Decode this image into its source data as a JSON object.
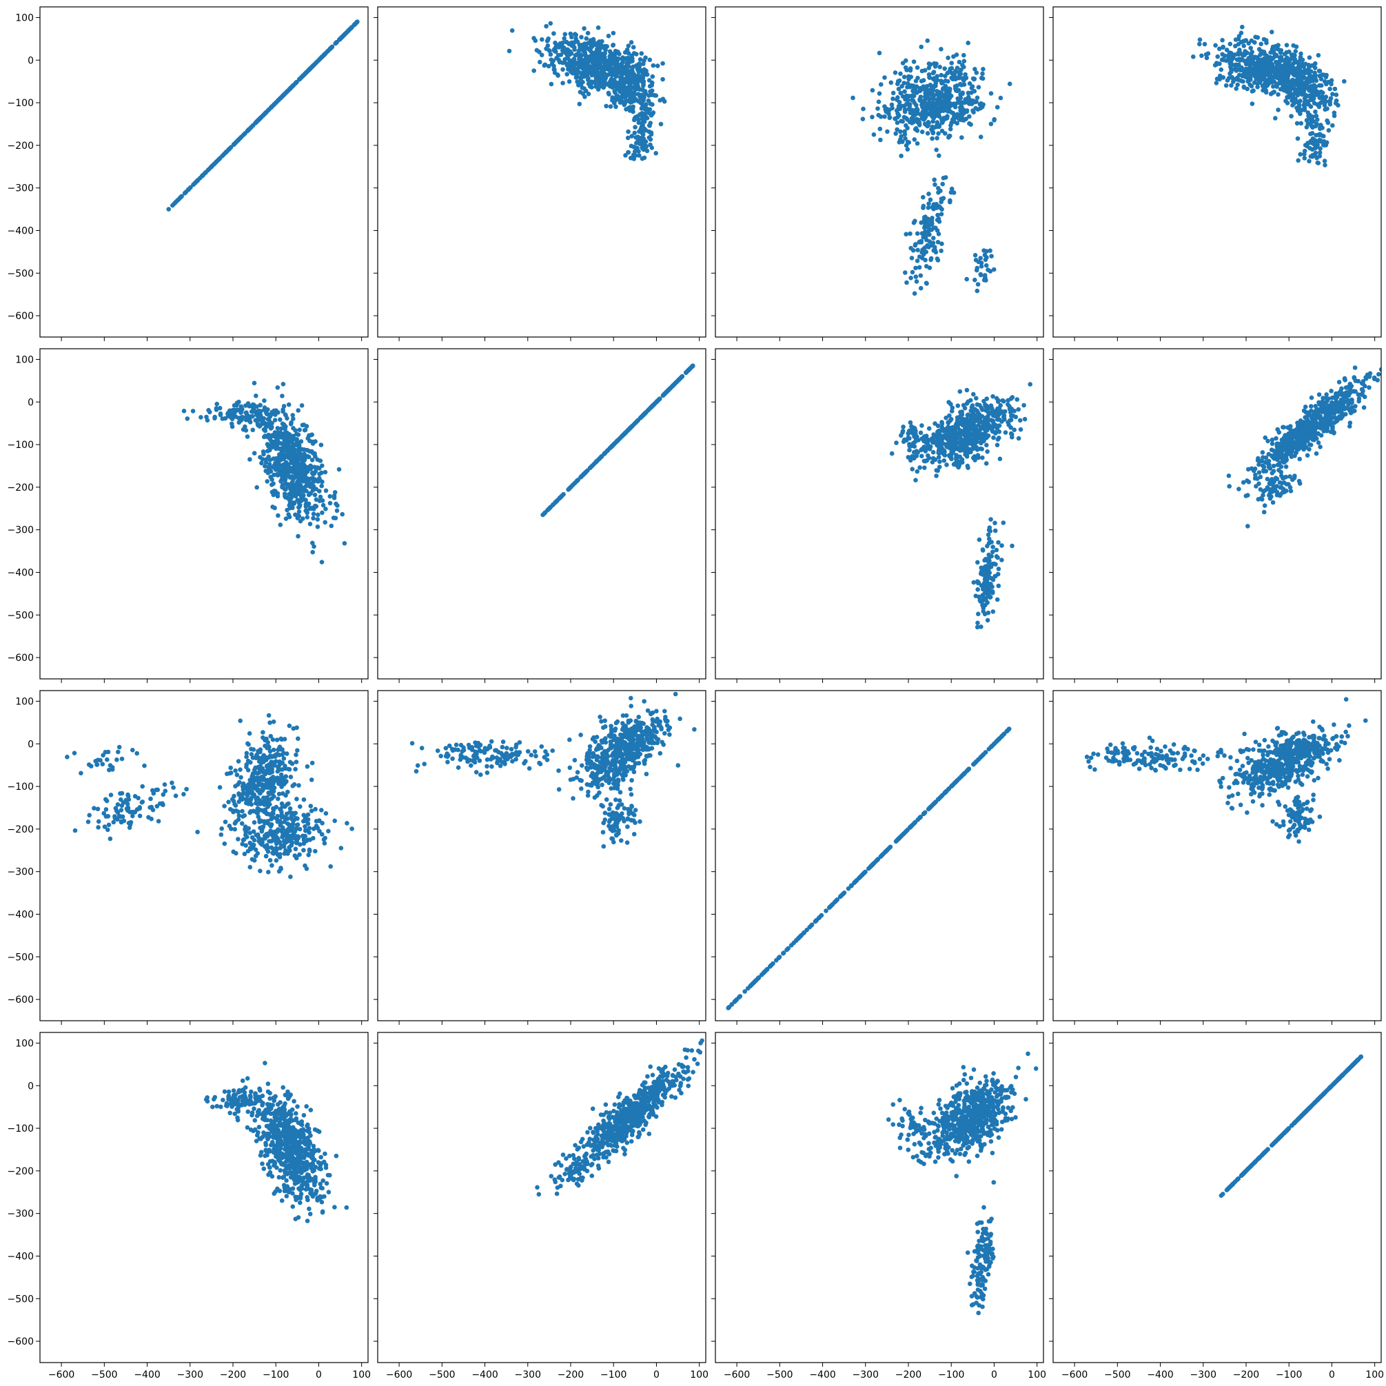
{
  "figure": {
    "rows": 4,
    "cols": 4,
    "marker_color": "#1f77b4",
    "sharex": true,
    "sharey": true,
    "grid": false,
    "legend": "none"
  },
  "chart_data": {
    "type": "scatter",
    "xlim": [
      -650,
      115
    ],
    "ylim": [
      -650,
      125
    ],
    "x_ticks": [
      -600,
      -500,
      -400,
      -300,
      -200,
      -100,
      0,
      100
    ],
    "y_ticks": [
      -600,
      -500,
      -400,
      -300,
      -200,
      -100,
      0,
      100
    ],
    "x_tick_labels": [
      "−600",
      "−500",
      "−400",
      "−300",
      "−200",
      "−100",
      "0",
      "100"
    ],
    "y_tick_labels": [
      "−600",
      "−500",
      "−400",
      "−300",
      "−200",
      "−100",
      "0",
      "100"
    ],
    "title": "",
    "xlabel": "",
    "ylabel": "",
    "panels": [
      {
        "row": 0,
        "col": 0,
        "kind": "identity",
        "range": [
          -350,
          90
        ]
      },
      {
        "row": 0,
        "col": 1,
        "kind": "cloud",
        "clusters": [
          {
            "cx": -150,
            "cy": -10,
            "sx": 55,
            "sy": 35,
            "rho": -0.4,
            "n": 520
          },
          {
            "cx": -60,
            "cy": -60,
            "sx": 30,
            "sy": 40,
            "rho": -0.2,
            "n": 260
          },
          {
            "cx": -35,
            "cy": -180,
            "sx": 15,
            "sy": 35,
            "rho": 0.2,
            "n": 90
          }
        ]
      },
      {
        "row": 0,
        "col": 2,
        "kind": "cloud",
        "clusters": [
          {
            "cx": -140,
            "cy": -95,
            "sx": 60,
            "sy": 45,
            "rho": 0.2,
            "n": 560
          },
          {
            "cx": -150,
            "cy": -400,
            "sx": 22,
            "sy": 60,
            "rho": 0.6,
            "n": 130
          },
          {
            "cx": -30,
            "cy": -490,
            "sx": 12,
            "sy": 25,
            "rho": 0.1,
            "n": 30
          }
        ]
      },
      {
        "row": 0,
        "col": 3,
        "kind": "cloud",
        "clusters": [
          {
            "cx": -150,
            "cy": -20,
            "sx": 55,
            "sy": 30,
            "rho": -0.3,
            "n": 520
          },
          {
            "cx": -60,
            "cy": -70,
            "sx": 30,
            "sy": 35,
            "rho": -0.2,
            "n": 220
          },
          {
            "cx": -40,
            "cy": -190,
            "sx": 15,
            "sy": 25,
            "rho": 0.2,
            "n": 70
          }
        ]
      },
      {
        "row": 1,
        "col": 0,
        "kind": "cloud",
        "clusters": [
          {
            "cx": -60,
            "cy": -150,
            "sx": 38,
            "sy": 65,
            "rho": -0.5,
            "n": 620
          },
          {
            "cx": -170,
            "cy": -30,
            "sx": 45,
            "sy": 15,
            "rho": 0.0,
            "n": 120
          }
        ]
      },
      {
        "row": 1,
        "col": 1,
        "kind": "identity",
        "range": [
          -265,
          85
        ]
      },
      {
        "row": 1,
        "col": 2,
        "kind": "cloud",
        "clusters": [
          {
            "cx": -60,
            "cy": -70,
            "sx": 55,
            "sy": 40,
            "rho": 0.6,
            "n": 560
          },
          {
            "cx": -15,
            "cy": -410,
            "sx": 15,
            "sy": 55,
            "rho": 0.4,
            "n": 130
          },
          {
            "cx": -180,
            "cy": -90,
            "sx": 30,
            "sy": 20,
            "rho": 0.0,
            "n": 60
          }
        ]
      },
      {
        "row": 1,
        "col": 3,
        "kind": "cloud",
        "clusters": [
          {
            "cx": -50,
            "cy": -60,
            "sx": 65,
            "sy": 55,
            "rho": 0.9,
            "n": 600
          },
          {
            "cx": -130,
            "cy": -200,
            "sx": 25,
            "sy": 20,
            "rho": 0.5,
            "n": 70
          }
        ]
      },
      {
        "row": 2,
        "col": 0,
        "kind": "cloud",
        "clusters": [
          {
            "cx": -130,
            "cy": -80,
            "sx": 40,
            "sy": 50,
            "rho": 0.4,
            "n": 360
          },
          {
            "cx": -90,
            "cy": -210,
            "sx": 55,
            "sy": 35,
            "rho": 0.1,
            "n": 300
          },
          {
            "cx": -430,
            "cy": -150,
            "sx": 55,
            "sy": 30,
            "rho": 0.6,
            "n": 90
          },
          {
            "cx": -500,
            "cy": -40,
            "sx": 40,
            "sy": 15,
            "rho": 0.0,
            "n": 25
          }
        ]
      },
      {
        "row": 2,
        "col": 1,
        "kind": "cloud",
        "clusters": [
          {
            "cx": -80,
            "cy": -20,
            "sx": 50,
            "sy": 45,
            "rho": 0.6,
            "n": 520
          },
          {
            "cx": -90,
            "cy": -180,
            "sx": 20,
            "sy": 30,
            "rho": 0.2,
            "n": 80
          },
          {
            "cx": -400,
            "cy": -25,
            "sx": 70,
            "sy": 15,
            "rho": 0.0,
            "n": 130
          }
        ]
      },
      {
        "row": 2,
        "col": 2,
        "kind": "identity",
        "range": [
          -620,
          35
        ]
      },
      {
        "row": 2,
        "col": 3,
        "kind": "cloud",
        "clusters": [
          {
            "cx": -110,
            "cy": -40,
            "sx": 60,
            "sy": 40,
            "rho": 0.6,
            "n": 520
          },
          {
            "cx": -80,
            "cy": -170,
            "sx": 20,
            "sy": 25,
            "rho": 0.2,
            "n": 80
          },
          {
            "cx": -420,
            "cy": -30,
            "sx": 75,
            "sy": 15,
            "rho": 0.0,
            "n": 130
          }
        ]
      },
      {
        "row": 3,
        "col": 0,
        "kind": "cloud",
        "clusters": [
          {
            "cx": -65,
            "cy": -150,
            "sx": 38,
            "sy": 65,
            "rho": -0.5,
            "n": 620
          },
          {
            "cx": -170,
            "cy": -35,
            "sx": 40,
            "sy": 15,
            "rho": 0.0,
            "n": 110
          }
        ]
      },
      {
        "row": 3,
        "col": 1,
        "kind": "cloud",
        "clusters": [
          {
            "cx": -60,
            "cy": -70,
            "sx": 65,
            "sy": 60,
            "rho": 0.9,
            "n": 620
          },
          {
            "cx": -190,
            "cy": -200,
            "sx": 25,
            "sy": 25,
            "rho": 0.3,
            "n": 50
          }
        ]
      },
      {
        "row": 3,
        "col": 2,
        "kind": "cloud",
        "clusters": [
          {
            "cx": -60,
            "cy": -80,
            "sx": 50,
            "sy": 45,
            "rho": 0.5,
            "n": 560
          },
          {
            "cx": -25,
            "cy": -410,
            "sx": 15,
            "sy": 55,
            "rho": 0.3,
            "n": 130
          },
          {
            "cx": -190,
            "cy": -90,
            "sx": 30,
            "sy": 25,
            "rho": 0.0,
            "n": 50
          }
        ]
      },
      {
        "row": 3,
        "col": 3,
        "kind": "identity",
        "range": [
          -258,
          68
        ]
      }
    ]
  }
}
